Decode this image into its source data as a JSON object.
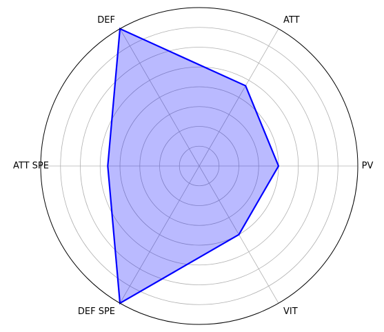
{
  "chart_data": {
    "type": "radar",
    "axes": [
      "PV",
      "ATT",
      "DEF",
      "ATT SPE",
      "DEF SPE",
      "VIT"
    ],
    "series": [
      {
        "values": [
          65,
          76,
          130,
          75,
          130,
          65
        ]
      }
    ],
    "rlim": [
      0,
      130
    ],
    "rgrid": [
      16.25,
      32.5,
      48.75,
      65,
      81.25,
      97.5,
      113.75
    ],
    "grid": true,
    "colors": {
      "line": "#0000ff",
      "fill": "#0000ff",
      "fill_opacity": 0.27,
      "grid": "#b0b0b0",
      "outer_ring": "#000000"
    }
  }
}
